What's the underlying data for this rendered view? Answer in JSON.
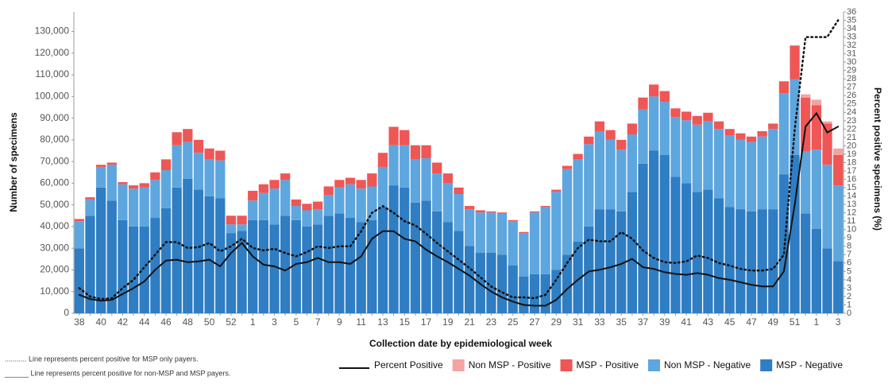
{
  "chart_data": {
    "type": "bar",
    "stacked": true,
    "y_label": "Number of specimens",
    "y2_label": "Percent positive specimens (%)",
    "x_label": "Collection date by epidemiological week",
    "notes": [
      "........... Line represents percent positive for MSP only payers.",
      "______ Line represents percent positive for non-MSP and MSP payers."
    ],
    "legend": "bottom",
    "categories": [
      "38",
      null,
      "40",
      null,
      "42",
      null,
      "44",
      null,
      "46",
      null,
      "48",
      null,
      "50",
      null,
      "52",
      null,
      "1",
      null,
      "3",
      null,
      "5",
      null,
      "7",
      null,
      "9",
      null,
      "11",
      null,
      "13",
      null,
      "15",
      null,
      "17",
      null,
      "19",
      null,
      "21",
      null,
      "23",
      null,
      "25",
      null,
      "27",
      null,
      "29",
      null,
      "31",
      null,
      "33",
      null,
      "35",
      null,
      "37",
      null,
      "39",
      null,
      "41",
      null,
      "43",
      null,
      "45",
      null,
      "47",
      null,
      "49",
      null,
      "51",
      null,
      "1",
      null,
      "3"
    ],
    "ylim": [
      0,
      139000
    ],
    "yticks": [
      0,
      {
        "value": 10000,
        "label": "10,000"
      },
      {
        "value": 20000,
        "label": "20,000"
      },
      {
        "value": 30000,
        "label": "30,000"
      },
      {
        "value": 40000,
        "label": "40,000"
      },
      {
        "value": 50000,
        "label": "50,000"
      },
      {
        "value": 60000,
        "label": "60,000"
      },
      {
        "value": 70000,
        "label": "70,000"
      },
      {
        "value": 80000,
        "label": "80,000"
      },
      {
        "value": 90000,
        "label": "90,000"
      },
      {
        "value": 100000,
        "label": "100,000"
      },
      {
        "value": 110000,
        "label": "110,000"
      },
      {
        "value": 120000,
        "label": "120,000"
      },
      {
        "value": 130000,
        "label": "130,000"
      }
    ],
    "y2lim": [
      0,
      36
    ],
    "y2ticks": [
      0,
      1,
      2,
      3,
      4,
      5,
      6,
      7,
      8,
      9,
      10,
      11,
      12,
      13,
      14,
      15,
      16,
      17,
      18,
      19,
      20,
      21,
      22,
      23,
      24,
      25,
      26,
      27,
      28,
      29,
      30,
      31,
      32,
      33,
      34,
      35,
      36
    ],
    "series": [
      {
        "name": "MSP - Negative",
        "color": "#2f7dc2",
        "values": [
          30000,
          45000,
          58000,
          52000,
          43000,
          40000,
          40000,
          44000,
          48500,
          58000,
          62000,
          57000,
          54000,
          53000,
          37000,
          38000,
          43000,
          43000,
          41000,
          45000,
          43000,
          40000,
          41000,
          45000,
          46000,
          44000,
          42000,
          43000,
          49000,
          59000,
          58000,
          51000,
          52000,
          47000,
          42000,
          38000,
          31000,
          28000,
          28000,
          27000,
          22000,
          17000,
          18000,
          18000,
          20000,
          27000,
          33000,
          40000,
          48000,
          48000,
          47000,
          56000,
          69000,
          75000,
          73000,
          63000,
          60000,
          56000,
          57000,
          53000,
          49000,
          48000,
          47000,
          48000,
          48000,
          64000,
          73000,
          46000,
          39000,
          30000,
          24000
        ]
      },
      {
        "name": "Non MSP - Negative",
        "color": "#5ea6de",
        "values": [
          12500,
          7500,
          9500,
          16500,
          16500,
          17500,
          18000,
          17500,
          17500,
          19500,
          17000,
          17000,
          17000,
          17500,
          4000,
          3000,
          9000,
          12500,
          16500,
          16500,
          6500,
          7500,
          7000,
          9500,
          12000,
          15500,
          15500,
          15500,
          18500,
          18500,
          19500,
          20000,
          19500,
          17500,
          18000,
          17000,
          17000,
          18500,
          18500,
          19000,
          20500,
          20000,
          28500,
          31000,
          36000,
          39500,
          38000,
          38000,
          36000,
          32000,
          28500,
          26500,
          25000,
          25000,
          24500,
          27500,
          29000,
          31000,
          31500,
          32000,
          33000,
          32000,
          32000,
          33500,
          37000,
          37500,
          35000,
          28500,
          36500,
          38500,
          35000
        ]
      },
      {
        "name": "MSP - Positive",
        "color": "#ef5656",
        "values": [
          1000,
          1000,
          1000,
          1000,
          1000,
          1500,
          2000,
          3500,
          5000,
          6000,
          6000,
          6000,
          5000,
          4500,
          4000,
          4000,
          4500,
          4000,
          4000,
          3000,
          3000,
          3000,
          3500,
          4000,
          3500,
          3000,
          4000,
          6000,
          6500,
          8500,
          7000,
          6500,
          6000,
          5000,
          4500,
          3000,
          1500,
          1000,
          500,
          500,
          500,
          500,
          500,
          500,
          1000,
          1500,
          2500,
          3500,
          4500,
          4500,
          4500,
          5000,
          5500,
          5500,
          5000,
          4000,
          4000,
          4000,
          4000,
          3500,
          3000,
          3000,
          2500,
          2500,
          2500,
          5500,
          15500,
          25000,
          20500,
          19000,
          14000
        ]
      },
      {
        "name": "Non MSP - Positive",
        "color": "#f4a3a3",
        "values": [
          0,
          0,
          0,
          0,
          0,
          0,
          0,
          0,
          0,
          0,
          0,
          0,
          0,
          0,
          0,
          0,
          0,
          0,
          0,
          0,
          0,
          0,
          0,
          0,
          0,
          0,
          0,
          0,
          0,
          0,
          0,
          0,
          0,
          0,
          0,
          0,
          0,
          0,
          0,
          0,
          0,
          0,
          0,
          0,
          0,
          0,
          0,
          0,
          0,
          0,
          0,
          0,
          0,
          0,
          0,
          0,
          0,
          0,
          0,
          0,
          0,
          0,
          0,
          0,
          0,
          0,
          0,
          1500,
          2500,
          1000,
          3000
        ]
      },
      {
        "name": "Percent Positive",
        "axis": "y2",
        "style": "solid",
        "color": "#111111",
        "values": [
          2.2,
          1.7,
          1.5,
          1.6,
          2.3,
          3,
          3.8,
          5.2,
          6.3,
          6.4,
          6.1,
          6.2,
          6.4,
          5.6,
          7.2,
          8.4,
          6.8,
          5.8,
          5.6,
          5.1,
          5.9,
          6.1,
          6.6,
          6.1,
          6.1,
          5.9,
          6.8,
          8.9,
          9.8,
          9.8,
          8.9,
          8.6,
          7.6,
          6.8,
          6.1,
          5.3,
          4.5,
          3.5,
          2.6,
          1.9,
          1.4,
          1.0,
          0.9,
          0.9,
          1.6,
          2.9,
          4.0,
          5.0,
          5.2,
          5.5,
          5.9,
          6.5,
          5.5,
          5.3,
          4.9,
          4.7,
          4.6,
          4.8,
          4.6,
          4.2,
          4.0,
          3.7,
          3.4,
          3.2,
          3.2,
          5.0,
          13,
          22.3,
          23.9,
          21.6,
          22.3
        ]
      },
      {
        "axis": "y2",
        "style": "dotted",
        "color": "#111111",
        "values": [
          3.0,
          2.0,
          1.7,
          1.8,
          3.0,
          4.0,
          5.5,
          7.0,
          8.5,
          8.5,
          7.8,
          7.9,
          8.4,
          7.4,
          8.0,
          8.9,
          7.8,
          7.5,
          7.7,
          7.2,
          6.8,
          7.3,
          8.0,
          7.8,
          8.0,
          8.0,
          9.8,
          12.0,
          12.8,
          12.0,
          11.0,
          10.5,
          9.5,
          8.4,
          7.4,
          6.4,
          5.4,
          4.3,
          3.2,
          2.5,
          1.9,
          1.9,
          1.8,
          2.2,
          4.0,
          6.0,
          7.8,
          8.8,
          8.6,
          8.6,
          9.7,
          8.9,
          7.5,
          6.6,
          6.1,
          6.0,
          6.2,
          6.9,
          6.6,
          6.0,
          5.7,
          5.3,
          5.1,
          5.1,
          5.3,
          7.0,
          22,
          33,
          33,
          33,
          35
        ]
      }
    ]
  }
}
